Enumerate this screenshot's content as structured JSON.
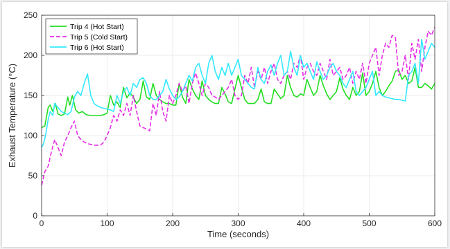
{
  "chart_data": {
    "type": "line",
    "xlabel": "Time (seconds)",
    "ylabel": "Exhaust Temperature (°C)",
    "xlim": [
      0,
      600
    ],
    "ylim": [
      0,
      250
    ],
    "xticks": [
      0,
      100,
      200,
      300,
      400,
      500,
      600
    ],
    "yticks": [
      0,
      50,
      100,
      150,
      200,
      250
    ],
    "grid": true,
    "legend_position": "top-left",
    "series": [
      {
        "name": "Trip 4 (Hot Start)",
        "color": "#22dd22",
        "dash": "solid",
        "x": [
          0,
          5,
          10,
          13,
          17,
          21,
          25,
          30,
          35,
          40,
          43,
          47,
          52,
          57,
          62,
          68,
          75,
          80,
          85,
          90,
          95,
          100,
          105,
          110,
          115,
          120,
          125,
          130,
          135,
          140,
          145,
          150,
          155,
          160,
          165,
          170,
          175,
          180,
          185,
          190,
          195,
          200,
          205,
          210,
          215,
          220,
          225,
          230,
          235,
          240,
          245,
          250,
          255,
          260,
          265,
          270,
          275,
          280,
          285,
          290,
          295,
          300,
          305,
          310,
          315,
          320,
          325,
          330,
          335,
          340,
          345,
          350,
          355,
          360,
          365,
          370,
          375,
          380,
          385,
          390,
          395,
          400,
          405,
          410,
          415,
          420,
          425,
          430,
          435,
          440,
          445,
          450,
          455,
          460,
          465,
          470,
          475,
          480,
          485,
          490,
          495,
          500,
          505,
          510,
          515,
          520,
          525,
          530,
          535,
          540,
          545,
          550,
          555,
          560,
          565,
          570,
          575,
          580,
          585,
          590,
          595,
          600
        ],
        "y": [
          110,
          112,
          135,
          138,
          130,
          140,
          127,
          125,
          127,
          148,
          138,
          150,
          132,
          128,
          130,
          126,
          125,
          125,
          125,
          125,
          126,
          128,
          150,
          138,
          142,
          135,
          160,
          147,
          153,
          148,
          140,
          145,
          168,
          148,
          145,
          165,
          150,
          145,
          142,
          140,
          140,
          138,
          138,
          165,
          148,
          140,
          170,
          158,
          150,
          145,
          168,
          150,
          145,
          142,
          140,
          140,
          160,
          152,
          142,
          140,
          158,
          175,
          160,
          145,
          140,
          140,
          140,
          145,
          158,
          142,
          140,
          140,
          158,
          152,
          146,
          150,
          175,
          160,
          150,
          148,
          152,
          150,
          170,
          160,
          150,
          155,
          175,
          162,
          152,
          145,
          150,
          155,
          172,
          158,
          150,
          145,
          160,
          150,
          155,
          178,
          150,
          155,
          165,
          180,
          160,
          150,
          155,
          162,
          168,
          180,
          182,
          170,
          175,
          165,
          168,
          185,
          160,
          160,
          165,
          162,
          158,
          165
        ]
      },
      {
        "name": "Trip 5 (Cold Start)",
        "color": "#e62ee6",
        "dash": "dashed",
        "x": [
          0,
          5,
          10,
          15,
          20,
          25,
          30,
          35,
          40,
          45,
          50,
          55,
          60,
          65,
          70,
          75,
          80,
          85,
          90,
          95,
          100,
          105,
          110,
          115,
          120,
          125,
          130,
          135,
          140,
          145,
          150,
          155,
          160,
          165,
          170,
          175,
          180,
          185,
          190,
          195,
          200,
          205,
          210,
          215,
          220,
          225,
          230,
          235,
          240,
          245,
          250,
          255,
          260,
          265,
          270,
          275,
          280,
          285,
          290,
          295,
          300,
          305,
          310,
          315,
          320,
          325,
          330,
          335,
          340,
          345,
          350,
          355,
          360,
          365,
          370,
          375,
          380,
          385,
          390,
          395,
          400,
          405,
          410,
          415,
          420,
          425,
          430,
          435,
          440,
          445,
          450,
          455,
          460,
          465,
          470,
          475,
          480,
          485,
          490,
          495,
          500,
          505,
          510,
          515,
          520,
          525,
          530,
          535,
          540,
          545,
          550,
          555,
          560,
          565,
          570,
          575,
          580,
          585,
          590,
          595,
          600
        ],
        "y": [
          38,
          55,
          62,
          80,
          95,
          85,
          75,
          92,
          100,
          110,
          118,
          100,
          95,
          92,
          90,
          89,
          88,
          88,
          88,
          92,
          100,
          110,
          125,
          118,
          132,
          125,
          140,
          125,
          150,
          130,
          112,
          110,
          108,
          106,
          140,
          125,
          155,
          130,
          118,
          150,
          140,
          150,
          165,
          155,
          162,
          140,
          165,
          178,
          165,
          150,
          165,
          160,
          150,
          148,
          145,
          150,
          155,
          160,
          170,
          150,
          145,
          150,
          175,
          165,
          185,
          160,
          180,
          170,
          185,
          165,
          180,
          190,
          170,
          165,
          175,
          180,
          170,
          190,
          185,
          200,
          170,
          185,
          190,
          180,
          175,
          190,
          180,
          170,
          195,
          175,
          180,
          185,
          170,
          175,
          185,
          165,
          180,
          170,
          190,
          165,
          190,
          200,
          210,
          175,
          200,
          215,
          210,
          225,
          222,
          175,
          180,
          200,
          170,
          215,
          195,
          220,
          180,
          210,
          230,
          225,
          235
        ]
      },
      {
        "name": "Trip 6 (Hot Start)",
        "color": "#33e8ff",
        "dash": "solid",
        "x": [
          0,
          3,
          6,
          10,
          13,
          17,
          20,
          25,
          30,
          35,
          40,
          45,
          50,
          55,
          60,
          65,
          70,
          75,
          80,
          85,
          90,
          95,
          100,
          105,
          110,
          115,
          120,
          125,
          130,
          135,
          140,
          145,
          150,
          155,
          160,
          165,
          170,
          175,
          180,
          185,
          190,
          195,
          200,
          205,
          210,
          215,
          220,
          225,
          230,
          235,
          240,
          245,
          250,
          255,
          260,
          265,
          270,
          275,
          280,
          285,
          290,
          295,
          300,
          305,
          310,
          315,
          320,
          325,
          330,
          335,
          340,
          345,
          350,
          355,
          360,
          365,
          370,
          375,
          380,
          385,
          390,
          395,
          400,
          405,
          410,
          415,
          420,
          425,
          430,
          435,
          440,
          445,
          450,
          455,
          460,
          465,
          470,
          475,
          480,
          485,
          490,
          495,
          500,
          505,
          510,
          515,
          520,
          525,
          530,
          535,
          540,
          545,
          550,
          555,
          560,
          565,
          570,
          575,
          580,
          585,
          590,
          595,
          600
        ],
        "y": [
          85,
          90,
          100,
          120,
          130,
          125,
          140,
          135,
          130,
          128,
          126,
          130,
          148,
          155,
          150,
          165,
          177,
          150,
          140,
          137,
          135,
          134,
          133,
          132,
          130,
          150,
          140,
          155,
          160,
          150,
          165,
          160,
          170,
          172,
          165,
          150,
          145,
          145,
          150,
          155,
          170,
          158,
          150,
          145,
          148,
          155,
          165,
          175,
          168,
          185,
          190,
          175,
          165,
          190,
          200,
          180,
          170,
          185,
          175,
          190,
          175,
          185,
          195,
          175,
          170,
          165,
          160,
          158,
          185,
          170,
          165,
          180,
          188,
          175,
          190,
          200,
          175,
          180,
          205,
          185,
          175,
          200,
          185,
          190,
          180,
          170,
          192,
          180,
          170,
          175,
          185,
          190,
          180,
          175,
          165,
          160,
          170,
          180,
          155,
          150,
          155,
          160,
          170,
          180,
          150,
          155,
          150,
          148,
          147,
          146,
          145,
          145,
          144,
          143,
          175,
          180,
          190,
          165,
          220,
          195,
          205,
          215,
          210
        ]
      }
    ]
  }
}
